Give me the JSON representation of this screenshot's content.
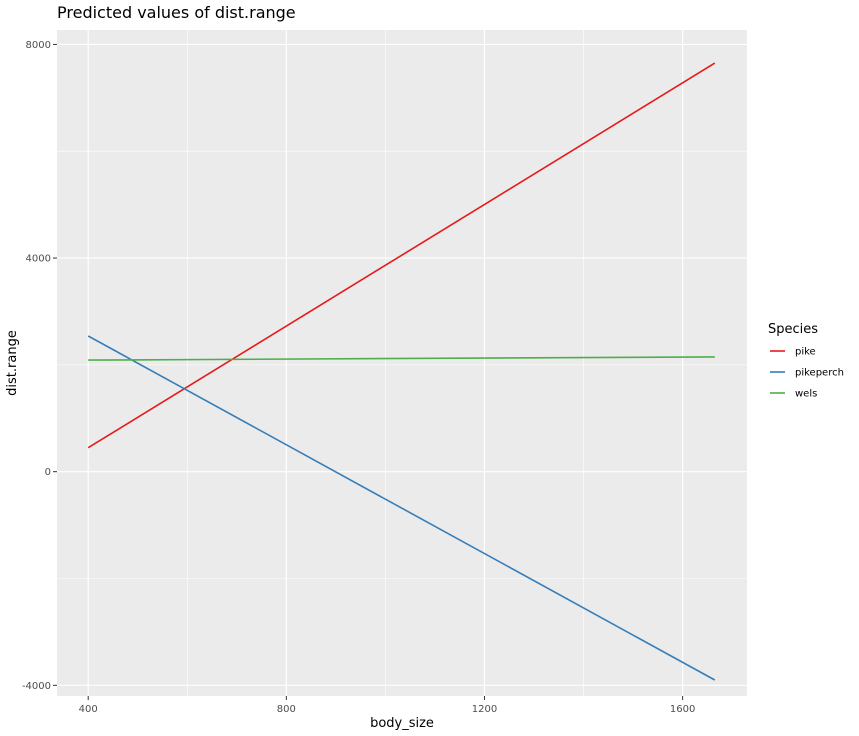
{
  "chart_data": {
    "type": "line",
    "title": "Predicted values of dist.range",
    "xlabel": "body_size",
    "ylabel": "dist.range",
    "xlim": [
      337,
      1730
    ],
    "ylim": [
      -4200,
      8270
    ],
    "x_ticks": [
      400,
      800,
      1200,
      1600
    ],
    "x_tick_labels": [
      "400",
      "800",
      "1200",
      "1600"
    ],
    "x_minor_ticks": [
      600,
      1000,
      1400
    ],
    "y_ticks": [
      -4000,
      0,
      4000,
      8000
    ],
    "y_tick_labels": [
      "-4000",
      "0",
      "4000",
      "8000"
    ],
    "y_minor_ticks": [
      -2000,
      2000,
      6000
    ],
    "grid": true,
    "background": "#ebebeb",
    "legend": {
      "title": "Species",
      "position": "right"
    },
    "series": [
      {
        "name": "pike",
        "color": "#e41a1c",
        "x": [
          400,
          1665
        ],
        "y": [
          450,
          7650
        ]
      },
      {
        "name": "pikeperch",
        "color": "#377eb8",
        "x": [
          400,
          1665
        ],
        "y": [
          2540,
          -3900
        ]
      },
      {
        "name": "wels",
        "color": "#4daf4a",
        "x": [
          400,
          1665
        ],
        "y": [
          2090,
          2150
        ]
      }
    ]
  }
}
